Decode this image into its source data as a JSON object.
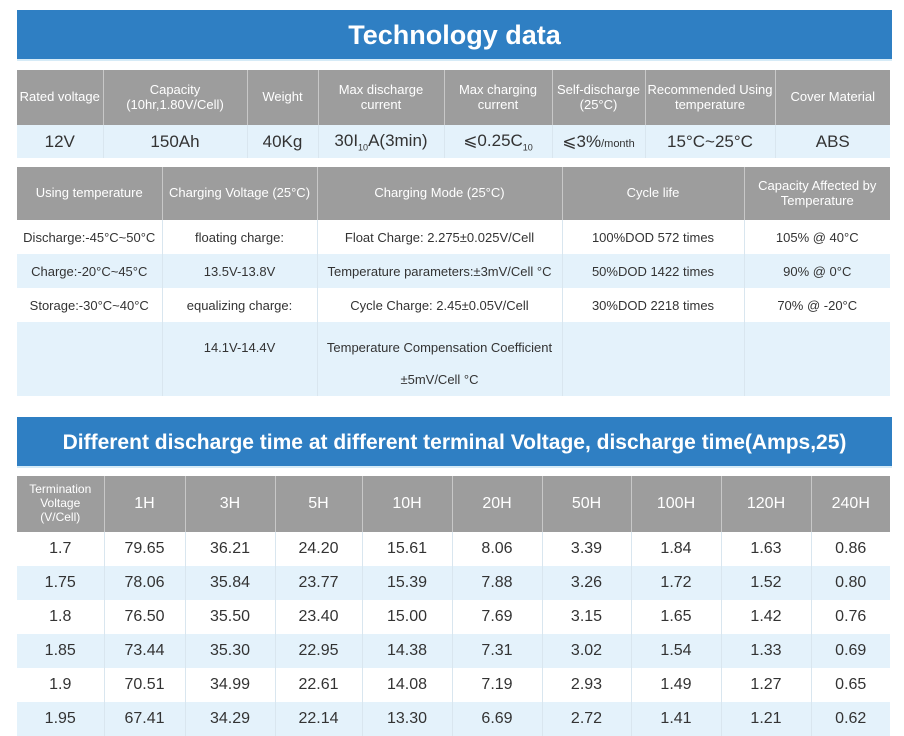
{
  "title": "Technology data",
  "spec": {
    "headers": [
      "Rated voltage",
      "Capacity (10hr,1.80V/Cell)",
      "Weight",
      "Max discharge current",
      "Max charging current",
      "Self-discharge (25°C)",
      "Recommended Using temperature",
      "Cover Material"
    ],
    "values": {
      "rated_voltage": "12V",
      "capacity": "150Ah",
      "weight": "40Kg",
      "max_discharge": "30I",
      "max_discharge_sub": "10",
      "max_discharge_suffix": "A(3min)",
      "max_charging": "⩽0.25C",
      "max_charging_sub": "10",
      "self_discharge": "⩽3%",
      "self_discharge_unit": "/month",
      "temperature": "15°C~25°C",
      "cover": "ABS"
    }
  },
  "charging": {
    "headers": [
      "Using temperature",
      "Charging Voltage (25°C)",
      "Charging Mode (25°C)",
      "Cycle life",
      "Capacity Affected by Temperature"
    ],
    "rows": [
      [
        "Discharge:-45°C~50°C",
        "floating charge:",
        "Float Charge: 2.275±0.025V/Cell",
        "100%DOD 572 times",
        "105% @ 40°C"
      ],
      [
        "Charge:-20°C~45°C",
        "13.5V-13.8V",
        "Temperature parameters:±3mV/Cell °C",
        "50%DOD 1422 times",
        "90% @ 0°C"
      ],
      [
        "Storage:-30°C~40°C",
        "equalizing charge:",
        "Cycle Charge: 2.45±0.05V/Cell",
        "30%DOD 2218 times",
        "70% @ -20°C"
      ],
      [
        "",
        "14.1V-14.4V",
        "Temperature Compensation Coefficient\n±5mV/Cell °C",
        "",
        ""
      ]
    ]
  },
  "discharge_title": "Different discharge time at different terminal Voltage, discharge time(Amps,25)",
  "discharge": {
    "headers": [
      "Termination Voltage (V/Cell)",
      "1H",
      "3H",
      "5H",
      "10H",
      "20H",
      "50H",
      "100H",
      "120H",
      "240H"
    ],
    "rows": [
      [
        "1.7",
        "79.65",
        "36.21",
        "24.20",
        "15.61",
        "8.06",
        "3.39",
        "1.84",
        "1.63",
        "0.86"
      ],
      [
        "1.75",
        "78.06",
        "35.84",
        "23.77",
        "15.39",
        "7.88",
        "3.26",
        "1.72",
        "1.52",
        "0.80"
      ],
      [
        "1.8",
        "76.50",
        "35.50",
        "23.40",
        "15.00",
        "7.69",
        "3.15",
        "1.65",
        "1.42",
        "0.76"
      ],
      [
        "1.85",
        "73.44",
        "35.30",
        "22.95",
        "14.38",
        "7.31",
        "3.02",
        "1.54",
        "1.33",
        "0.69"
      ],
      [
        "1.9",
        "70.51",
        "34.99",
        "22.61",
        "14.08",
        "7.19",
        "2.93",
        "1.49",
        "1.27",
        "0.65"
      ],
      [
        "1.95",
        "67.41",
        "34.29",
        "22.14",
        "13.30",
        "6.69",
        "2.72",
        "1.41",
        "1.21",
        "0.62"
      ]
    ]
  }
}
